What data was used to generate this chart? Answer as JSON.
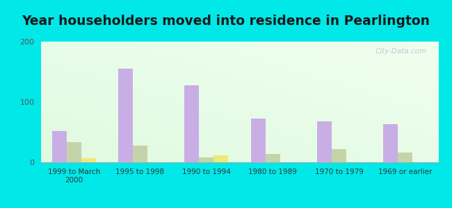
{
  "title": "Year householders moved into residence in Pearlington",
  "categories": [
    "1999 to March\n2000",
    "1995 to 1998",
    "1990 to 1994",
    "1980 to 1989",
    "1970 to 1979",
    "1969 or earlier"
  ],
  "series": {
    "White Non-Hispanic": [
      52,
      155,
      128,
      72,
      68,
      63
    ],
    "Black": [
      33,
      28,
      8,
      14,
      22,
      16
    ],
    "American Indian and Alaska Native": [
      7,
      0,
      11,
      0,
      0,
      0
    ]
  },
  "colors": {
    "White Non-Hispanic": "#c9aee5",
    "Black": "#c5d4a8",
    "American Indian and Alaska Native": "#ede97a"
  },
  "legend_colors": {
    "White Non-Hispanic": "#d4aaee",
    "Black": "#d8e4b8",
    "American Indian and Alaska Native": "#f0ec80"
  },
  "ylim": [
    0,
    200
  ],
  "yticks": [
    0,
    100,
    200
  ],
  "bar_width": 0.22,
  "background_color": "#00e8e8",
  "title_fontsize": 13.5,
  "watermark": "City-Data.com"
}
